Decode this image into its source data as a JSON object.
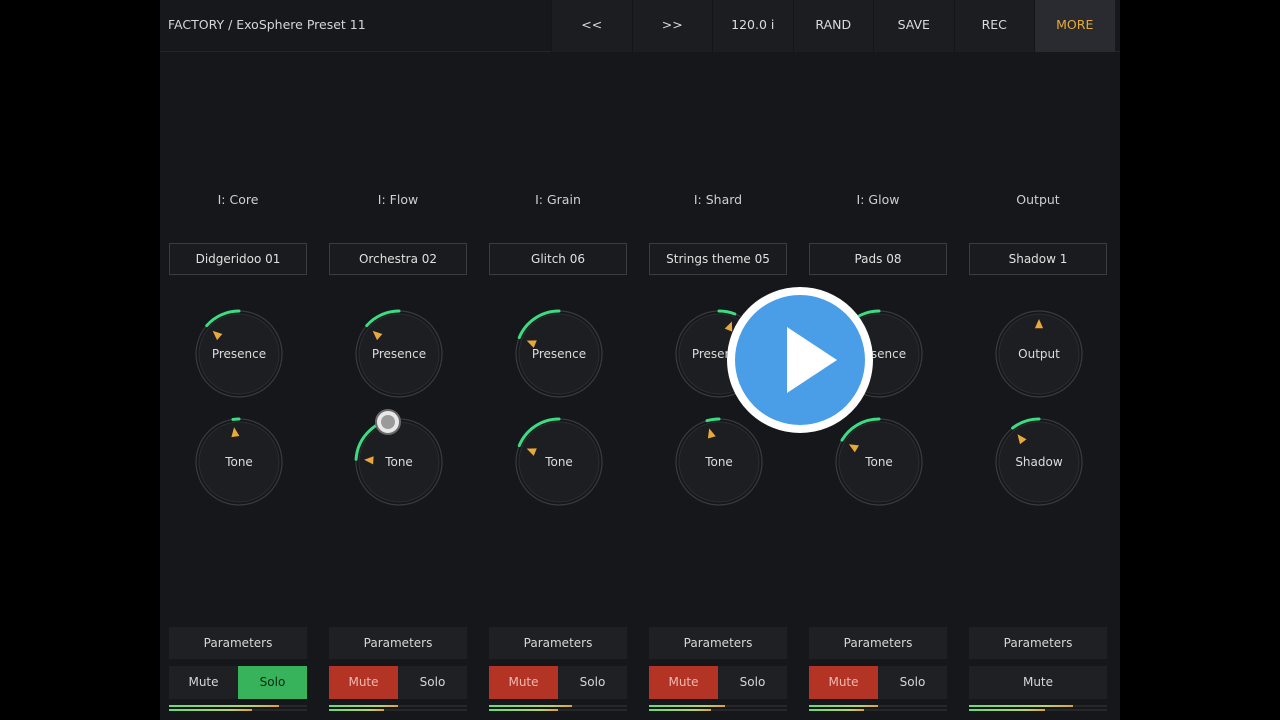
{
  "header": {
    "preset_title": "FACTORY / ExoSphere Preset 11",
    "toolbar": [
      {
        "id": "prev",
        "label": "<<"
      },
      {
        "id": "next",
        "label": ">>"
      },
      {
        "id": "tempo",
        "label": "120.0 i"
      },
      {
        "id": "rand",
        "label": "RAND"
      },
      {
        "id": "save",
        "label": "SAVE"
      },
      {
        "id": "rec",
        "label": "REC"
      },
      {
        "id": "more",
        "label": "MORE"
      }
    ]
  },
  "colors": {
    "accent": "#e8a93a",
    "arc_green": "#3ddc84",
    "mute_active": "#b33425",
    "solo_active": "#37b45b",
    "play_overlay": "#4a9ee8"
  },
  "columns": [
    {
      "label": "I: Core",
      "sound": "Didgeridoo 01",
      "knobs": [
        {
          "label": "Presence",
          "value": 0.32
        },
        {
          "label": "Tone",
          "value": 0.47
        }
      ],
      "parameters_label": "Parameters",
      "buttons": [
        {
          "label": "Mute",
          "state": "off"
        },
        {
          "label": "Solo",
          "state": "on"
        }
      ],
      "meter": [
        0.8,
        0.6
      ]
    },
    {
      "label": "I: Flow",
      "sound": "Orchestra 02",
      "knobs": [
        {
          "label": "Presence",
          "value": 0.32
        },
        {
          "label": "Tone",
          "value": 0.18
        }
      ],
      "parameters_label": "Parameters",
      "buttons": [
        {
          "label": "Mute",
          "state": "on"
        },
        {
          "label": "Solo",
          "state": "off"
        }
      ],
      "meter": [
        0.5,
        0.4
      ]
    },
    {
      "label": "I: Grain",
      "sound": "Glitch 06",
      "knobs": [
        {
          "label": "Presence",
          "value": 0.25
        },
        {
          "label": "Tone",
          "value": 0.25
        }
      ],
      "parameters_label": "Parameters",
      "buttons": [
        {
          "label": "Mute",
          "state": "on"
        },
        {
          "label": "Solo",
          "state": "off"
        }
      ],
      "meter": [
        0.6,
        0.5
      ]
    },
    {
      "label": "I: Shard",
      "sound": "Strings theme 05",
      "knobs": [
        {
          "label": "Presence",
          "value": 0.58
        },
        {
          "label": "Tone",
          "value": 0.44
        }
      ],
      "parameters_label": "Parameters",
      "buttons": [
        {
          "label": "Mute",
          "state": "on"
        },
        {
          "label": "Solo",
          "state": "off"
        }
      ],
      "meter": [
        0.55,
        0.45
      ]
    },
    {
      "label": "I: Glow",
      "sound": "Pads 08",
      "knobs": [
        {
          "label": "Presence",
          "value": 0.32
        },
        {
          "label": "Tone",
          "value": 0.28
        }
      ],
      "parameters_label": "Parameters",
      "buttons": [
        {
          "label": "Mute",
          "state": "on"
        },
        {
          "label": "Solo",
          "state": "off"
        }
      ],
      "meter": [
        0.5,
        0.4
      ]
    },
    {
      "label": "Output",
      "sound": "Shadow 1",
      "knobs": [
        {
          "label": "Output",
          "value": 0.5
        },
        {
          "label": "Shadow",
          "value": 0.36
        }
      ],
      "parameters_label": "Parameters",
      "buttons": [
        {
          "label": "Mute",
          "state": "off"
        }
      ],
      "meter": [
        0.75,
        0.55
      ]
    }
  ]
}
